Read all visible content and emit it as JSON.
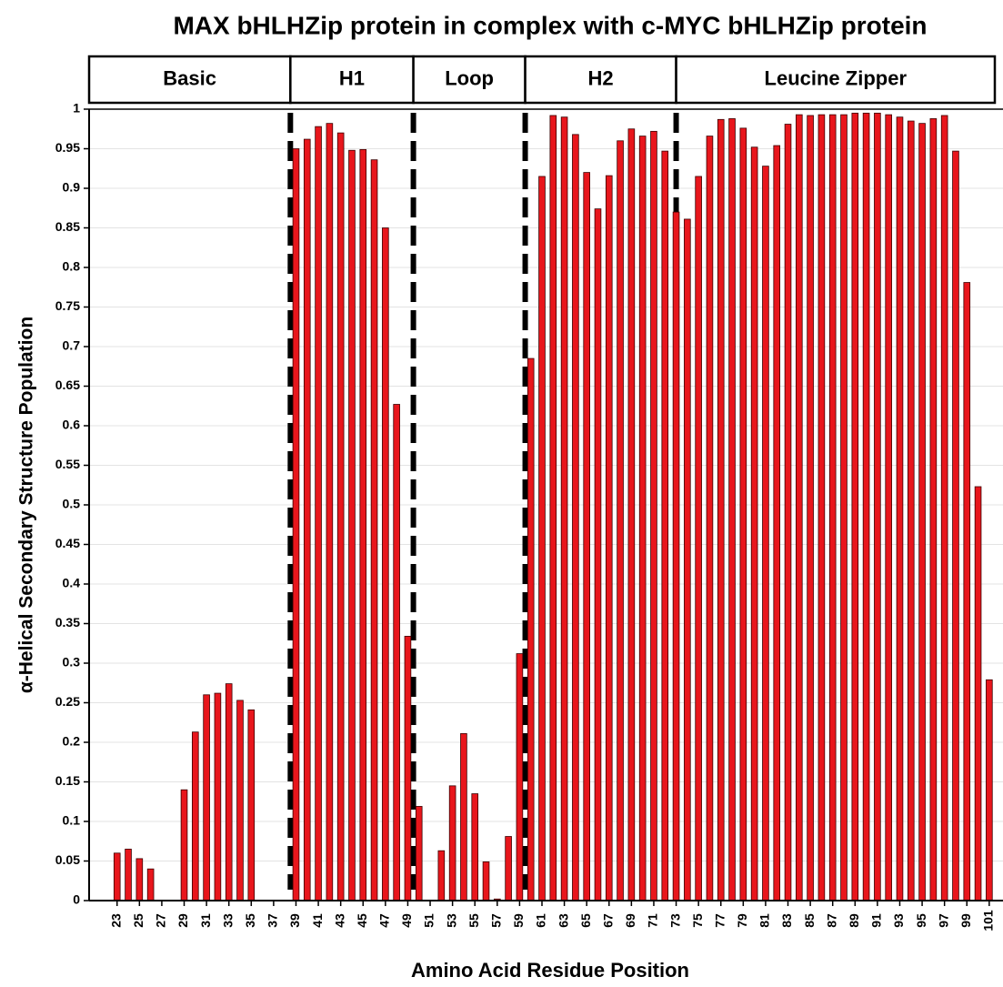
{
  "chart_data": {
    "type": "bar",
    "title": "MAX bHLHZip protein in complex with c-MYC bHLHZip protein",
    "xlabel": "Amino Acid Residue Position",
    "ylabel": "α-Helical Secondary Structure Population",
    "color": "#e8161c",
    "x": [
      21,
      22,
      23,
      24,
      25,
      26,
      27,
      28,
      29,
      30,
      31,
      32,
      33,
      34,
      35,
      36,
      37,
      38,
      39,
      40,
      41,
      42,
      43,
      44,
      45,
      46,
      47,
      48,
      49,
      50,
      51,
      52,
      53,
      54,
      55,
      56,
      57,
      58,
      59,
      60,
      61,
      62,
      63,
      64,
      65,
      66,
      67,
      68,
      69,
      70,
      71,
      72,
      73,
      74,
      75,
      76,
      77,
      78,
      79,
      80,
      81,
      82,
      83,
      84,
      85,
      86,
      87,
      88,
      89,
      90,
      91,
      92,
      93,
      94,
      95,
      96,
      97,
      98,
      99,
      100,
      101
    ],
    "values": [
      0,
      0,
      0.06,
      0.065,
      0.053,
      0.04,
      0,
      0,
      0.14,
      0.213,
      0.26,
      0.262,
      0.274,
      0.253,
      0.241,
      0,
      0,
      0,
      0.95,
      0.962,
      0.978,
      0.982,
      0.97,
      0.948,
      0.949,
      0.936,
      0.85,
      0.627,
      0.334,
      0.119,
      0,
      0.063,
      0.145,
      0.211,
      0.135,
      0.049,
      0.002,
      0.081,
      0.312,
      0.685,
      0.915,
      0.992,
      0.99,
      0.968,
      0.92,
      0.874,
      0.916,
      0.96,
      0.975,
      0.966,
      0.972,
      0.947,
      0.87,
      0.861,
      0.915,
      0.966,
      0.987,
      0.988,
      0.976,
      0.952,
      0.928,
      0.954,
      0.981,
      0.993,
      0.992,
      0.993,
      0.993,
      0.993,
      0.995,
      0.995,
      0.995,
      0.993,
      0.99,
      0.985,
      0.982,
      0.988,
      0.992,
      0.947,
      0.781,
      0.523,
      0.279
    ],
    "xlim": [
      20.5,
      101.5
    ],
    "xticks": [
      23,
      25,
      27,
      29,
      31,
      33,
      35,
      37,
      39,
      41,
      43,
      45,
      47,
      49,
      51,
      53,
      55,
      57,
      59,
      61,
      63,
      65,
      67,
      69,
      71,
      73,
      75,
      77,
      79,
      81,
      83,
      85,
      87,
      89,
      91,
      93,
      95,
      97,
      99,
      101
    ],
    "ylim": [
      0,
      1
    ],
    "yticks": [
      0,
      0.05,
      0.1,
      0.15,
      0.2,
      0.25,
      0.3,
      0.35,
      0.4,
      0.45,
      0.5,
      0.55,
      0.6,
      0.65,
      0.7,
      0.75,
      0.8,
      0.85,
      0.9,
      0.95,
      1
    ],
    "grid": true,
    "regions": [
      {
        "label": "Basic",
        "start": 20.5,
        "end": 38.5
      },
      {
        "label": "H1",
        "start": 38.5,
        "end": 49.5
      },
      {
        "label": "Loop",
        "start": 49.5,
        "end": 59.5
      },
      {
        "label": "H2",
        "start": 59.5,
        "end": 73
      },
      {
        "label": "Leucine Zipper",
        "start": 73,
        "end": 101.5
      }
    ],
    "dividers": [
      38.5,
      49.5,
      59.5,
      73
    ]
  }
}
